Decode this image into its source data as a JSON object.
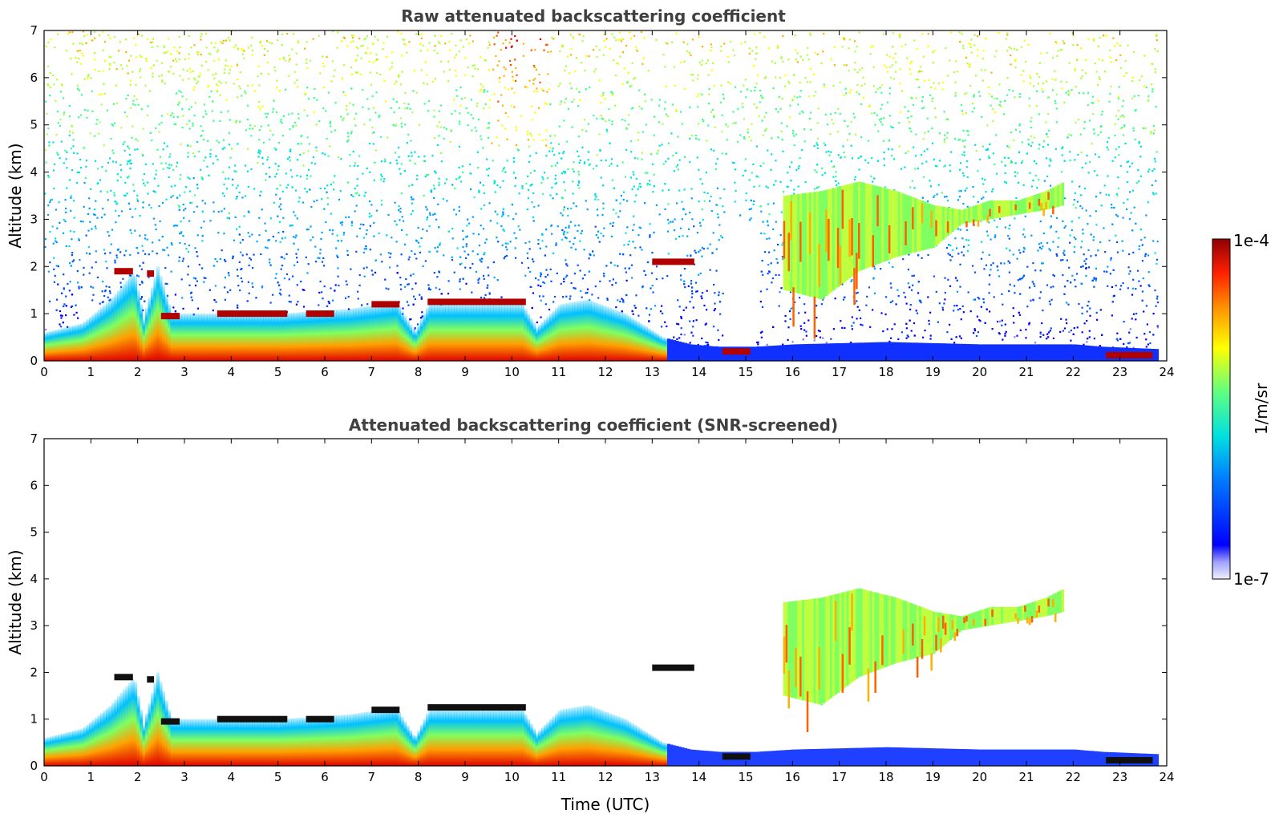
{
  "chart_data": [
    {
      "type": "heatmap",
      "title": "Raw attenuated backscattering coefficient",
      "xlabel": "",
      "ylabel": "Altitude (km)",
      "xlim": [
        0,
        24
      ],
      "ylim": [
        0,
        7
      ],
      "x_ticks": [
        "0",
        "1",
        "2",
        "3",
        "4",
        "5",
        "6",
        "7",
        "8",
        "9",
        "10",
        "11",
        "12",
        "13",
        "14",
        "15",
        "16",
        "17",
        "18",
        "19",
        "20",
        "21",
        "22",
        "23",
        "24"
      ],
      "y_ticks": [
        "0",
        "1",
        "2",
        "3",
        "4",
        "5",
        "6",
        "7"
      ],
      "noise_layer": {
        "description_units": "km",
        "top_km": 7
      },
      "cloud_layers": [
        {
          "t0": 1.5,
          "t1": 1.9,
          "alt": 1.9,
          "value": "very-high"
        },
        {
          "t0": 2.2,
          "t1": 2.35,
          "alt": 1.85,
          "value": "very-high"
        },
        {
          "t0": 2.5,
          "t1": 2.9,
          "alt": 0.95,
          "value": "very-high"
        },
        {
          "t0": 3.7,
          "t1": 5.2,
          "alt": 1.0,
          "value": "very-high"
        },
        {
          "t0": 5.6,
          "t1": 6.2,
          "alt": 1.0,
          "value": "very-high"
        },
        {
          "t0": 7.0,
          "t1": 7.6,
          "alt": 1.2,
          "value": "very-high"
        },
        {
          "t0": 8.2,
          "t1": 10.3,
          "alt": 1.25,
          "value": "very-high"
        },
        {
          "t0": 13.0,
          "t1": 13.9,
          "alt": 2.1,
          "value": "very-high"
        },
        {
          "t0": 14.5,
          "t1": 15.1,
          "alt": 0.2,
          "value": "very-high"
        },
        {
          "t0": 22.7,
          "t1": 23.7,
          "alt": 0.12,
          "value": "very-high"
        }
      ]
    },
    {
      "type": "heatmap",
      "title": "Attenuated backscattering coefficient (SNR-screened)",
      "xlabel": "Time (UTC)",
      "ylabel": "Altitude (km)",
      "xlim": [
        0,
        24
      ],
      "ylim": [
        0,
        7
      ],
      "x_ticks": [
        "0",
        "1",
        "2",
        "3",
        "4",
        "5",
        "6",
        "7",
        "8",
        "9",
        "10",
        "11",
        "12",
        "13",
        "14",
        "15",
        "16",
        "17",
        "18",
        "19",
        "20",
        "21",
        "22",
        "23",
        "24"
      ],
      "y_ticks": [
        "0",
        "1",
        "2",
        "3",
        "4",
        "5",
        "6",
        "7"
      ],
      "noise_layer": {
        "description_units": "km",
        "top_km": 0
      }
    }
  ],
  "colorbar": {
    "top_label": "1e-4",
    "bottom_label": "1e-7",
    "unit": "1/m/sr",
    "colors": [
      "#e8e8ff",
      "#c8c8ff",
      "#8080ff",
      "#0000ff",
      "#0050ff",
      "#00a0ff",
      "#00e0e0",
      "#40ff90",
      "#b0ff40",
      "#ffff00",
      "#ffb000",
      "#ff5000",
      "#e00000",
      "#900000"
    ]
  }
}
